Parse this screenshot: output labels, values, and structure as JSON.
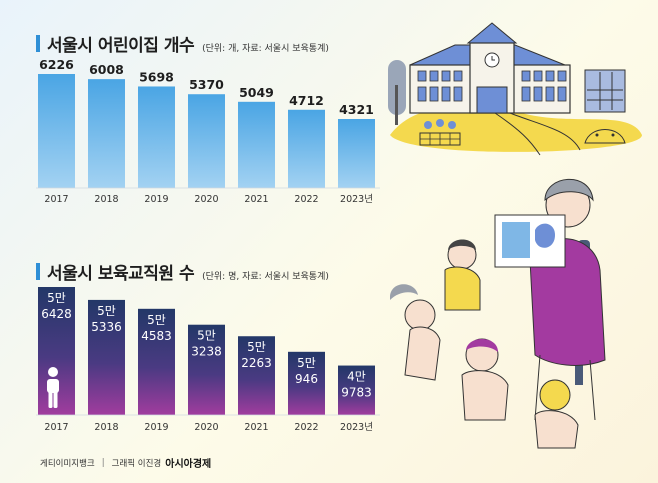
{
  "chart1": {
    "title": "서울시 어린이집 개수",
    "subtitle": "(단위: 개, 자료: 서울시 보육통계)",
    "chart_data": {
      "type": "bar",
      "categories": [
        "2017",
        "2018",
        "2019",
        "2020",
        "2021",
        "2022",
        "2023년"
      ],
      "values": [
        6226,
        6008,
        5698,
        5370,
        5049,
        4712,
        4321
      ],
      "value_labels": [
        "6226",
        "6008",
        "5698",
        "5370",
        "5049",
        "4712",
        "4321"
      ],
      "title": "서울시 어린이집 개수",
      "ylim": [
        0,
        6400
      ]
    }
  },
  "chart2": {
    "title": "서울시 보육교직원 수",
    "subtitle": "(단위: 명, 자료: 서울시 보육통계)",
    "chart_data": {
      "type": "bar",
      "categories": [
        "2017",
        "2018",
        "2019",
        "2020",
        "2021",
        "2022",
        "2023년"
      ],
      "values": [
        56428,
        55336,
        54583,
        53238,
        52263,
        50946,
        49783
      ],
      "value_labels": [
        [
          "5만",
          "6428"
        ],
        [
          "5만",
          "5336"
        ],
        [
          "5만",
          "4583"
        ],
        [
          "5만",
          "3238"
        ],
        [
          "5만",
          "2263"
        ],
        [
          "5만",
          "946"
        ],
        [
          "4만",
          "9783"
        ]
      ],
      "title": "서울시 보육교직원 수",
      "ylim": [
        45000,
        57500
      ]
    }
  },
  "footer": {
    "source": "게티이미지뱅크",
    "separator": "|",
    "credit": "그래픽 이진경",
    "brand": "아시아경제"
  },
  "colors": {
    "accent": "#2f8fd6",
    "bar1_top": "#4aa5e4",
    "bar1_bottom": "#9fd0f1",
    "bar2_top": "#243a6b",
    "bar2_bottom": "#9a3a9a"
  }
}
